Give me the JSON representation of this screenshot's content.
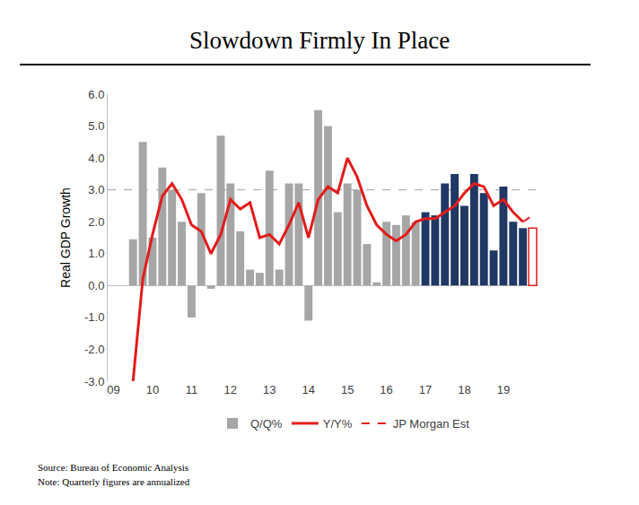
{
  "chart_data": {
    "type": "bar",
    "title": "Slowdown Firmly In Place",
    "y_label": "Real GDP Growth",
    "notes": [
      "Source: Bureau of Economic Analysis",
      "Note: Quarterly figures are annualized"
    ],
    "categories": [
      "09",
      null,
      null,
      null,
      "10",
      null,
      null,
      null,
      "11",
      null,
      null,
      null,
      "12",
      null,
      null,
      null,
      "13",
      null,
      null,
      null,
      "14",
      null,
      null,
      null,
      "15",
      null,
      null,
      null,
      "16",
      null,
      null,
      null,
      "17",
      null,
      null,
      null,
      "18",
      null,
      null,
      null,
      "19",
      null,
      null,
      null
    ],
    "series": [
      {
        "name": "Q/Q%",
        "type": "bar",
        "colors": [
          "#a6a6a6",
          "#a6a6a6",
          "#a6a6a6",
          "#a6a6a6",
          "#a6a6a6",
          "#a6a6a6",
          "#a6a6a6",
          "#a6a6a6",
          "#a6a6a6",
          "#a6a6a6",
          "#a6a6a6",
          "#a6a6a6",
          "#a6a6a6",
          "#a6a6a6",
          "#a6a6a6",
          "#a6a6a6",
          "#a6a6a6",
          "#a6a6a6",
          "#a6a6a6",
          "#a6a6a6",
          "#a6a6a6",
          "#a6a6a6",
          "#a6a6a6",
          "#a6a6a6",
          "#a6a6a6",
          "#a6a6a6",
          "#a6a6a6",
          "#a6a6a6",
          "#a6a6a6",
          "#a6a6a6",
          "#a6a6a6",
          "#a6a6a6",
          "#1f3864",
          "#1f3864",
          "#1f3864",
          "#1f3864",
          "#1f3864",
          "#1f3864",
          "#1f3864",
          "#1f3864",
          "#1f3864",
          "#1f3864",
          "#1f3864",
          "#ffffff"
        ],
        "values": [
          null,
          null,
          1.45,
          4.5,
          1.5,
          3.7,
          3.0,
          2.0,
          -1.0,
          2.9,
          -0.1,
          4.7,
          3.2,
          1.7,
          0.5,
          0.4,
          3.6,
          0.5,
          3.2,
          3.2,
          -1.1,
          5.5,
          5.0,
          2.3,
          3.2,
          3.0,
          1.3,
          0.1,
          2.0,
          1.9,
          2.2,
          2.0,
          2.3,
          2.2,
          3.2,
          3.5,
          2.5,
          3.5,
          2.9,
          1.1,
          3.1,
          2.0,
          1.8,
          1.8
        ]
      },
      {
        "name": "Y/Y%",
        "type": "line",
        "color": "#e31b1b",
        "values": [
          null,
          null,
          -3.0,
          0.2,
          1.6,
          2.8,
          3.2,
          2.7,
          1.9,
          1.7,
          1.0,
          1.6,
          2.7,
          2.4,
          2.6,
          1.5,
          1.6,
          1.3,
          1.9,
          2.6,
          1.5,
          2.7,
          3.1,
          2.9,
          4.0,
          3.4,
          2.5,
          1.9,
          1.6,
          1.4,
          1.6,
          2.0,
          2.1,
          2.1,
          2.3,
          2.5,
          2.9,
          3.2,
          3.1,
          2.5,
          2.7,
          2.3,
          2.0,
          null
        ]
      },
      {
        "name": "JP Morgan Est",
        "type": "line",
        "color": "#e31b1b",
        "line_style": "dash",
        "values": [
          null,
          null,
          null,
          null,
          null,
          null,
          null,
          null,
          null,
          null,
          null,
          null,
          null,
          null,
          null,
          null,
          null,
          null,
          null,
          null,
          null,
          null,
          null,
          null,
          null,
          null,
          null,
          null,
          null,
          null,
          null,
          null,
          null,
          null,
          null,
          null,
          null,
          null,
          null,
          null,
          null,
          null,
          2.0,
          2.2
        ]
      }
    ],
    "hlines": [
      3.0
    ],
    "ylim": [
      -3,
      6
    ],
    "yticks": [
      {
        "value": -3,
        "label": "-3.0"
      },
      {
        "value": -2,
        "label": "-2.0"
      },
      {
        "value": -1,
        "label": "-1.0"
      },
      {
        "value": 0,
        "label": "0.0"
      },
      {
        "value": 1,
        "label": "1.0"
      },
      {
        "value": 2,
        "label": "2.0"
      },
      {
        "value": 3,
        "label": "3.0"
      },
      {
        "value": 4,
        "label": "4.0"
      },
      {
        "value": 5,
        "label": "5.0"
      },
      {
        "value": 6,
        "label": "6.0"
      }
    ],
    "grid": false,
    "legend": "bottom"
  }
}
